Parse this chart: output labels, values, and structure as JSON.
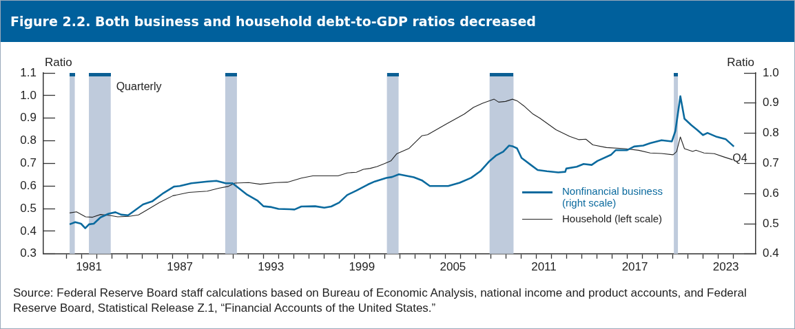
{
  "chart_data": {
    "type": "line",
    "title": "Figure 2.2. Both business and household debt-to-GDP ratios decreased",
    "ylabel": "Ratio",
    "y2label": "Ratio",
    "annotations": [
      "Quarterly",
      "Q4",
      "Source: Federal Reserve Board staff calculations based on Bureau of Economic Analysis, national income and product accounts, and Federal Reserve Board, Statistical Release Z.1, “Financial Accounts of the United States.”"
    ],
    "xlim": [
      1978.5,
      2025.47
    ],
    "xticks": [
      {
        "value": 1980,
        "label": null
      },
      {
        "value": 1981,
        "label": null
      },
      {
        "value": 1981.5,
        "label": "1981"
      },
      {
        "value": 1982,
        "label": null
      },
      {
        "value": 1983,
        "label": null
      },
      {
        "value": 1984,
        "label": null
      },
      {
        "value": 1985,
        "label": null
      },
      {
        "value": 1986,
        "label": null
      },
      {
        "value": 1987,
        "label": null
      },
      {
        "value": 1987.5,
        "label": "1987"
      },
      {
        "value": 1988,
        "label": null
      },
      {
        "value": 1989,
        "label": null
      },
      {
        "value": 1990,
        "label": null
      },
      {
        "value": 1991,
        "label": null
      },
      {
        "value": 1992,
        "label": null
      },
      {
        "value": 1993,
        "label": null
      },
      {
        "value": 1993.5,
        "label": "1993"
      },
      {
        "value": 1994,
        "label": null
      },
      {
        "value": 1995,
        "label": null
      },
      {
        "value": 1996,
        "label": null
      },
      {
        "value": 1997,
        "label": null
      },
      {
        "value": 1998,
        "label": null
      },
      {
        "value": 1999,
        "label": null
      },
      {
        "value": 1999.5,
        "label": "1999"
      },
      {
        "value": 2000,
        "label": null
      },
      {
        "value": 2001,
        "label": null
      },
      {
        "value": 2002,
        "label": null
      },
      {
        "value": 2003,
        "label": null
      },
      {
        "value": 2004,
        "label": null
      },
      {
        "value": 2005,
        "label": null
      },
      {
        "value": 2005.5,
        "label": "2005"
      },
      {
        "value": 2006,
        "label": null
      },
      {
        "value": 2007,
        "label": null
      },
      {
        "value": 2008,
        "label": null
      },
      {
        "value": 2009,
        "label": null
      },
      {
        "value": 2010,
        "label": null
      },
      {
        "value": 2011,
        "label": null
      },
      {
        "value": 2011.5,
        "label": "2011"
      },
      {
        "value": 2012,
        "label": null
      },
      {
        "value": 2013,
        "label": null
      },
      {
        "value": 2014,
        "label": null
      },
      {
        "value": 2015,
        "label": null
      },
      {
        "value": 2016,
        "label": null
      },
      {
        "value": 2017,
        "label": null
      },
      {
        "value": 2017.5,
        "label": "2017"
      },
      {
        "value": 2018,
        "label": null
      },
      {
        "value": 2019,
        "label": null
      },
      {
        "value": 2020,
        "label": null
      },
      {
        "value": 2021,
        "label": null
      },
      {
        "value": 2022,
        "label": null
      },
      {
        "value": 2023,
        "label": null
      },
      {
        "value": 2023.5,
        "label": "2023"
      },
      {
        "value": 2024,
        "label": null
      }
    ],
    "ylim": [
      0.3,
      1.1
    ],
    "yticks": [
      0.3,
      0.4,
      0.5,
      0.6,
      0.7,
      0.8,
      0.9,
      {
        "value": 1.0,
        "label": "1.0"
      },
      1.1
    ],
    "y2lim": [
      0.4,
      1.0
    ],
    "y2ticks": [
      0.4,
      0.5,
      0.6,
      0.7,
      0.8,
      0.9,
      {
        "value": 1.0,
        "label": "1.0"
      }
    ],
    "grid": false,
    "legend": "bottom right",
    "marker": "none",
    "line_style": "solid",
    "bands": [
      {
        "axis": "x",
        "from": 1980.23,
        "to": 1980.57,
        "color": "#bfcbdc"
      },
      {
        "axis": "x",
        "from": 1981.5,
        "to": 1982.94,
        "color": "#bfcbdc"
      },
      {
        "axis": "x",
        "from": 1990.49,
        "to": 1991.26,
        "color": "#bfcbdc"
      },
      {
        "axis": "x",
        "from": 2001.15,
        "to": 2001.92,
        "color": "#bfcbdc"
      },
      {
        "axis": "x",
        "from": 2007.92,
        "to": 2009.5,
        "color": "#bfcbdc"
      },
      {
        "axis": "x",
        "from": 2020.07,
        "to": 2020.34,
        "color": "#bfcbdc"
      }
    ],
    "series": [
      {
        "name": "Nonfinancial business (right scale)",
        "color": "#0b6a9e",
        "axis": "y2",
        "x": [
          1980.23,
          1980.6,
          1980.98,
          1981.26,
          1981.51,
          1981.82,
          1982.27,
          1982.8,
          1983.25,
          1983.63,
          1984.09,
          1985.07,
          1985.67,
          1986.43,
          1987.11,
          1987.49,
          1988.25,
          1989.31,
          1989.91,
          1990.52,
          1990.97,
          1991.88,
          1992.63,
          1993.01,
          1993.54,
          1994.0,
          1994.75,
          1995.06,
          1995.51,
          1996.42,
          1997.02,
          1997.48,
          1998.0,
          1998.53,
          1999.14,
          1999.9,
          2000.35,
          2001.11,
          2001.49,
          2001.94,
          2002.92,
          2003.45,
          2003.98,
          2004.59,
          2005.19,
          2005.95,
          2006.7,
          2007.31,
          2007.92,
          2008.37,
          2008.82,
          2009.2,
          2009.43,
          2009.73,
          2010.03,
          2010.64,
          2011.09,
          2011.7,
          2012.45,
          2012.91,
          2012.98,
          2013.67,
          2014.12,
          2014.65,
          2015.03,
          2015.94,
          2016.24,
          2016.99,
          2017.45,
          2018.05,
          2018.51,
          2019.26,
          2019.94,
          2020.17,
          2020.5,
          2020.77,
          2021.22,
          2021.61,
          2021.99,
          2022.29,
          2022.9,
          2023.5,
          2024.03
        ],
        "values": [
          0.498,
          0.505,
          0.5,
          0.485,
          0.498,
          0.5,
          0.521,
          0.533,
          0.538,
          0.53,
          0.528,
          0.564,
          0.574,
          0.602,
          0.623,
          0.625,
          0.634,
          0.64,
          0.642,
          0.634,
          0.634,
          0.598,
          0.576,
          0.558,
          0.555,
          0.549,
          0.548,
          0.547,
          0.557,
          0.558,
          0.553,
          0.557,
          0.57,
          0.595,
          0.61,
          0.63,
          0.64,
          0.652,
          0.655,
          0.664,
          0.654,
          0.644,
          0.625,
          0.625,
          0.625,
          0.636,
          0.652,
          0.674,
          0.708,
          0.727,
          0.739,
          0.759,
          0.757,
          0.75,
          0.718,
          0.695,
          0.678,
          0.674,
          0.67,
          0.672,
          0.683,
          0.689,
          0.698,
          0.695,
          0.708,
          0.729,
          0.744,
          0.744,
          0.756,
          0.759,
          0.767,
          0.777,
          0.773,
          0.807,
          0.923,
          0.848,
          0.827,
          0.811,
          0.794,
          0.801,
          0.788,
          0.78,
          0.756
        ]
      },
      {
        "name": "Household (left scale)",
        "color": "#222222",
        "x": [
          1980.23,
          1980.68,
          1981.28,
          1981.74,
          1982.27,
          1982.95,
          1983.4,
          1984.16,
          1984.77,
          1985.37,
          1986.13,
          1987.04,
          1988.1,
          1989.3,
          1990.06,
          1990.67,
          1991.12,
          1992.03,
          1992.79,
          1993.84,
          1994.6,
          1995.51,
          1996.26,
          1997.93,
          1998.54,
          1999.14,
          1999.6,
          2000.05,
          2000.5,
          2000.96,
          2001.41,
          2001.79,
          2002.62,
          2003.45,
          2003.83,
          2005.04,
          2006.25,
          2006.86,
          2007.46,
          2008.22,
          2008.52,
          2008.97,
          2009.43,
          2009.73,
          2010.19,
          2010.79,
          2011.24,
          2012.3,
          2013.21,
          2013.82,
          2014.27,
          2014.73,
          2015.63,
          2016.85,
          2017.75,
          2018.51,
          2019.26,
          2020.02,
          2020.25,
          2020.5,
          2020.77,
          2021.31,
          2021.53,
          2022.06,
          2022.74,
          2023.35,
          2023.95
        ],
        "values": [
          0.481,
          0.486,
          0.464,
          0.462,
          0.474,
          0.469,
          0.464,
          0.466,
          0.472,
          0.496,
          0.526,
          0.557,
          0.572,
          0.577,
          0.59,
          0.598,
          0.613,
          0.615,
          0.608,
          0.615,
          0.617,
          0.635,
          0.645,
          0.645,
          0.658,
          0.661,
          0.674,
          0.678,
          0.686,
          0.698,
          0.711,
          0.742,
          0.767,
          0.822,
          0.827,
          0.873,
          0.918,
          0.948,
          0.966,
          0.984,
          0.971,
          0.974,
          0.984,
          0.977,
          0.954,
          0.918,
          0.9,
          0.849,
          0.819,
          0.805,
          0.807,
          0.782,
          0.77,
          0.765,
          0.758,
          0.746,
          0.744,
          0.738,
          0.752,
          0.817,
          0.765,
          0.753,
          0.758,
          0.746,
          0.743,
          0.729,
          0.716
        ]
      }
    ]
  }
}
